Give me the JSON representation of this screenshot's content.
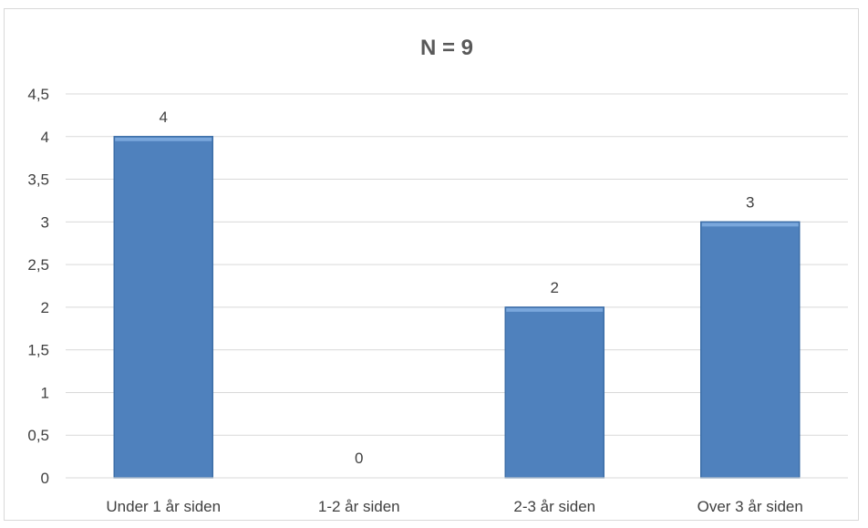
{
  "chart_data": {
    "type": "bar",
    "title": "N = 9",
    "categories": [
      "Under 1 år siden",
      "1-2 år siden",
      "2-3 år siden",
      "Over 3 år siden"
    ],
    "values": [
      4,
      0,
      2,
      3
    ],
    "data_labels": [
      "4",
      "0",
      "2",
      "3"
    ],
    "ylim": [
      0,
      4.5
    ],
    "yticks": [
      "0",
      "0,5",
      "1",
      "1,5",
      "2",
      "2,5",
      "3",
      "3,5",
      "4",
      "4,5"
    ],
    "grid": true,
    "bar_color": "#4f81bd",
    "legend": "none"
  }
}
